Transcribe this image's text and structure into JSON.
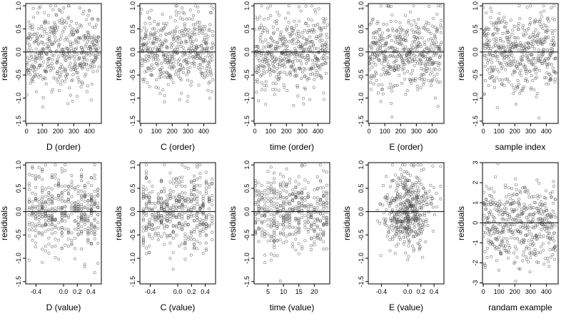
{
  "chart_data": [
    {
      "type": "scatter",
      "xlabel": "D (order)",
      "ylabel": "residuals",
      "xlim": [
        -5,
        475
      ],
      "ylim": [
        -1.55,
        1.05
      ],
      "xticks": [
        0,
        100,
        200,
        300,
        400
      ],
      "xtick_labels": [
        "0",
        "100",
        "200",
        "300",
        "400"
      ],
      "yticks": [
        -1.5,
        -1,
        -0.5,
        0,
        0.5,
        1
      ],
      "ytick_labels": [
        "-1.5",
        "-1.0",
        "-0.5",
        "0.0",
        "0.5",
        "1.0"
      ],
      "hline": 0,
      "pattern": {
        "n": 460,
        "gen": "order",
        "xmin": 0,
        "xmax": 460,
        "sd": 0.42,
        "seed": 11
      }
    },
    {
      "type": "scatter",
      "xlabel": "C (order)",
      "ylabel": "residuals",
      "xlim": [
        -5,
        475
      ],
      "ylim": [
        -1.55,
        1.05
      ],
      "xticks": [
        0,
        100,
        200,
        300,
        400
      ],
      "xtick_labels": [
        "0",
        "100",
        "200",
        "300",
        "400"
      ],
      "yticks": [
        -1.5,
        -1,
        -0.5,
        0,
        0.5,
        1
      ],
      "ytick_labels": [
        "-1.5",
        "-1.0",
        "-0.5",
        "0.0",
        "0.5",
        "1.0"
      ],
      "hline": 0,
      "pattern": {
        "n": 460,
        "gen": "order",
        "xmin": 0,
        "xmax": 460,
        "sd": 0.42,
        "seed": 23
      }
    },
    {
      "type": "scatter",
      "xlabel": "time (order)",
      "ylabel": "residuals",
      "xlim": [
        -5,
        475
      ],
      "ylim": [
        -1.55,
        1.05
      ],
      "xticks": [
        0,
        100,
        200,
        300,
        400
      ],
      "xtick_labels": [
        "0",
        "100",
        "200",
        "300",
        "400"
      ],
      "yticks": [
        -1.5,
        -1,
        -0.5,
        0,
        0.5,
        1
      ],
      "ytick_labels": [
        "-1.5",
        "-1.0",
        "-0.5",
        "0.0",
        "0.5",
        "1.0"
      ],
      "hline": 0,
      "pattern": {
        "n": 460,
        "gen": "order",
        "xmin": 0,
        "xmax": 460,
        "sd": 0.42,
        "seed": 37
      }
    },
    {
      "type": "scatter",
      "xlabel": "E (order)",
      "ylabel": "residuals",
      "xlim": [
        -5,
        475
      ],
      "ylim": [
        -1.55,
        1.05
      ],
      "xticks": [
        0,
        100,
        200,
        300,
        400
      ],
      "xtick_labels": [
        "0",
        "100",
        "200",
        "300",
        "400"
      ],
      "yticks": [
        -1.5,
        -1,
        -0.5,
        0,
        0.5,
        1
      ],
      "ytick_labels": [
        "-1.5",
        "-1.0",
        "-0.5",
        "0.0",
        "0.5",
        "1.0"
      ],
      "hline": 0,
      "pattern": {
        "n": 460,
        "gen": "order",
        "xmin": 0,
        "xmax": 460,
        "sd": 0.42,
        "seed": 41
      }
    },
    {
      "type": "scatter",
      "xlabel": "sample index",
      "ylabel": "residuals",
      "xlim": [
        -5,
        475
      ],
      "ylim": [
        -1.55,
        1.05
      ],
      "xticks": [
        0,
        100,
        200,
        300,
        400
      ],
      "xtick_labels": [
        "0",
        "100",
        "200",
        "300",
        "400"
      ],
      "yticks": [
        -1.5,
        -1,
        -0.5,
        0,
        0.5,
        1
      ],
      "ytick_labels": [
        "-1.5",
        "-1.0",
        "-0.5",
        "0.0",
        "0.5",
        "1.0"
      ],
      "hline": 0,
      "pattern": {
        "n": 460,
        "gen": "order",
        "xmin": 0,
        "xmax": 460,
        "sd": 0.42,
        "seed": 53
      }
    },
    {
      "type": "scatter",
      "xlabel": "D (value)",
      "ylabel": "residuals",
      "xlim": [
        -0.55,
        0.55
      ],
      "ylim": [
        -1.55,
        1.05
      ],
      "xticks": [
        -0.4,
        0,
        0.2,
        0.4
      ],
      "xtick_labels": [
        "-0.4",
        "0.0",
        "0.2",
        "0.4"
      ],
      "yticks": [
        -1.5,
        -1,
        -0.5,
        0,
        0.5,
        1
      ],
      "ytick_labels": [
        "-1.5",
        "-1.0",
        "-0.5",
        "0.0",
        "0.5",
        "1.0"
      ],
      "hline": 0,
      "pattern": {
        "n": 460,
        "gen": "columns",
        "xmin": -0.5,
        "xmax": 0.5,
        "ncols": 22,
        "sd": 0.42,
        "seed": 61
      }
    },
    {
      "type": "scatter",
      "xlabel": "C (value)",
      "ylabel": "residuals",
      "xlim": [
        -0.55,
        0.55
      ],
      "ylim": [
        -1.55,
        1.05
      ],
      "xticks": [
        -0.4,
        0,
        0.2,
        0.4
      ],
      "xtick_labels": [
        "-0.4",
        "0.0",
        "0.2",
        "0.4"
      ],
      "yticks": [
        -1.5,
        -1,
        -0.5,
        0,
        0.5,
        1
      ],
      "ytick_labels": [
        "-1.5",
        "-1.0",
        "-0.5",
        "0.0",
        "0.5",
        "1.0"
      ],
      "hline": 0,
      "pattern": {
        "n": 460,
        "gen": "columns",
        "xmin": -0.5,
        "xmax": 0.5,
        "ncols": 24,
        "sd": 0.42,
        "seed": 71
      }
    },
    {
      "type": "scatter",
      "xlabel": "time (value)",
      "ylabel": "residuals",
      "xlim": [
        0.5,
        25
      ],
      "ylim": [
        -1.55,
        1.05
      ],
      "xticks": [
        5,
        10,
        15,
        20
      ],
      "xtick_labels": [
        "5",
        "10",
        "15",
        "20"
      ],
      "yticks": [
        -1.5,
        -1,
        -0.5,
        0,
        0.5,
        1
      ],
      "ytick_labels": [
        "-1.5",
        "-1.0",
        "-0.5",
        "0.0",
        "0.5",
        "1.0"
      ],
      "hline": 0,
      "pattern": {
        "n": 460,
        "gen": "columns",
        "xmin": 1,
        "xmax": 24,
        "ncols": 24,
        "sd": 0.42,
        "seed": 83
      }
    },
    {
      "type": "scatter",
      "xlabel": "E (value)",
      "ylabel": "residuals",
      "xlim": [
        -0.6,
        0.55
      ],
      "ylim": [
        -1.55,
        1.05
      ],
      "xticks": [
        -0.4,
        0,
        0.2,
        0.4
      ],
      "xtick_labels": [
        "-0.4",
        "0.0",
        "0.2",
        "0.4"
      ],
      "yticks": [
        -1.5,
        -1,
        -0.5,
        0,
        0.5,
        1
      ],
      "ytick_labels": [
        "-1.5",
        "-1.0",
        "-0.5",
        "0.0",
        "0.5",
        "1.0"
      ],
      "hline": 0,
      "pattern": {
        "n": 460,
        "gen": "centered",
        "center": 0,
        "xsd": 0.18,
        "xmin": -0.55,
        "xmax": 0.5,
        "sd": 0.42,
        "seed": 97
      }
    },
    {
      "type": "scatter",
      "xlabel": "randam example",
      "ylabel": "residuals",
      "xlim": [
        -5,
        475
      ],
      "ylim": [
        -3.05,
        3.0
      ],
      "xticks": [
        0,
        100,
        200,
        300,
        400
      ],
      "xtick_labels": [
        "0",
        "100",
        "200",
        "300",
        "400"
      ],
      "yticks": [
        -3,
        -2,
        -1,
        0,
        1,
        2,
        3
      ],
      "ytick_labels": [
        "-3",
        "-2",
        "-1",
        "0",
        "1",
        "2",
        "3"
      ],
      "hline": 0,
      "pattern": {
        "n": 460,
        "gen": "order",
        "xmin": 0,
        "xmax": 460,
        "sd": 1.0,
        "seed": 101
      }
    }
  ]
}
